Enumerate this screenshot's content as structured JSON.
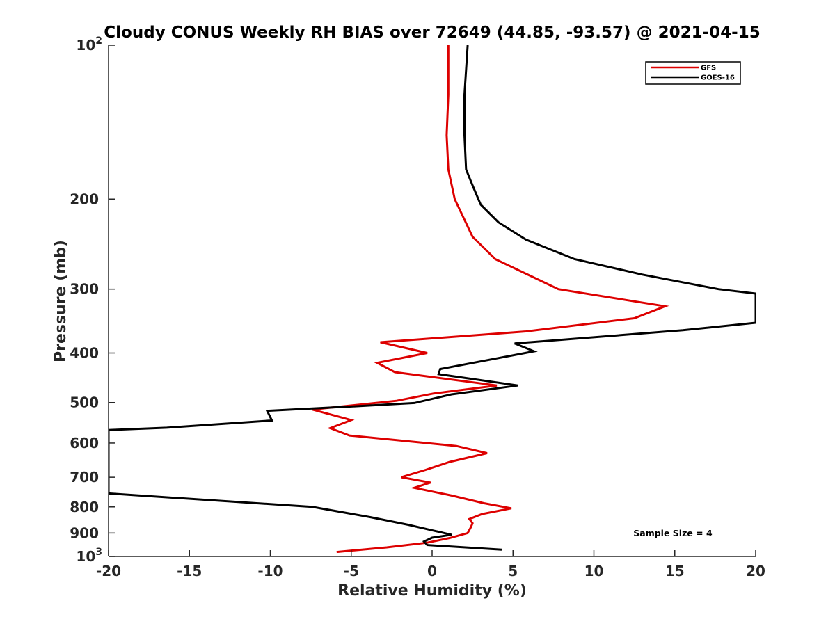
{
  "chart_data": {
    "type": "line",
    "title": "Cloudy CONUS Weekly RH BIAS over 72649 (44.85, -93.57) @ 2021-04-15",
    "xlabel": "Relative Humidity (%)",
    "ylabel": "Pressure (mb)",
    "xlim": [
      -20,
      20
    ],
    "ylim": [
      1000,
      100
    ],
    "yscale": "log",
    "xticks": [
      -20,
      -15,
      -10,
      -5,
      0,
      5,
      10,
      15,
      20
    ],
    "xtick_labels": [
      "-20",
      "-15",
      "-10",
      "-5",
      "0",
      "5",
      "10",
      "15",
      "20"
    ],
    "yticks": [
      {
        "value": 100,
        "base": "10",
        "exp": "2"
      },
      {
        "value": 200,
        "label": "200"
      },
      {
        "value": 300,
        "label": "300"
      },
      {
        "value": 400,
        "label": "400"
      },
      {
        "value": 500,
        "label": "500"
      },
      {
        "value": 600,
        "label": "600"
      },
      {
        "value": 700,
        "label": "700"
      },
      {
        "value": 800,
        "label": "800"
      },
      {
        "value": 900,
        "label": "900"
      },
      {
        "value": 1000,
        "base": "10",
        "exp": "3"
      }
    ],
    "grid": false,
    "legend_position": "top-right",
    "annotation": "Sample Size = 4",
    "series": [
      {
        "name": "GFS",
        "color": "#dd0000",
        "points": [
          [
            1.0,
            100
          ],
          [
            1.0,
            125
          ],
          [
            0.9,
            150
          ],
          [
            1.0,
            175
          ],
          [
            1.4,
            200
          ],
          [
            2.5,
            237
          ],
          [
            3.9,
            262
          ],
          [
            7.8,
            300
          ],
          [
            14.4,
            324
          ],
          [
            12.5,
            342
          ],
          [
            5.8,
            363
          ],
          [
            -3.2,
            381
          ],
          [
            -0.3,
            400
          ],
          [
            -3.4,
            418
          ],
          [
            -2.3,
            436
          ],
          [
            4.0,
            463
          ],
          [
            0.1,
            480
          ],
          [
            -2.2,
            496
          ],
          [
            -7.4,
            516
          ],
          [
            -5.0,
            541
          ],
          [
            -6.3,
            561
          ],
          [
            -5.1,
            580
          ],
          [
            1.5,
            608
          ],
          [
            3.4,
            628
          ],
          [
            1.1,
            653
          ],
          [
            -0.4,
            677
          ],
          [
            -1.9,
            700
          ],
          [
            -0.1,
            717
          ],
          [
            -1.1,
            734
          ],
          [
            1.2,
            760
          ],
          [
            3.2,
            787
          ],
          [
            4.9,
            805
          ],
          [
            3.1,
            826
          ],
          [
            2.3,
            845
          ],
          [
            2.5,
            861
          ],
          [
            2.4,
            876
          ],
          [
            2.2,
            900
          ],
          [
            1.1,
            920
          ],
          [
            -0.3,
            940
          ],
          [
            -2.8,
            960
          ],
          [
            -5.9,
            980
          ]
        ]
      },
      {
        "name": "GOES-16",
        "color": "#000000",
        "points": [
          [
            2.2,
            100
          ],
          [
            2.0,
            125
          ],
          [
            2.0,
            150
          ],
          [
            2.1,
            175
          ],
          [
            2.5,
            188
          ],
          [
            3.0,
            205
          ],
          [
            4.1,
            222
          ],
          [
            5.8,
            240
          ],
          [
            8.8,
            262
          ],
          [
            13.0,
            281
          ],
          [
            17.7,
            300
          ],
          [
            20.0,
            306
          ],
          [
            20.0,
            349
          ],
          [
            15.5,
            361
          ],
          [
            5.1,
            383
          ],
          [
            6.3,
            397
          ],
          [
            0.5,
            430
          ],
          [
            0.4,
            440
          ],
          [
            5.3,
            463
          ],
          [
            1.2,
            482
          ],
          [
            -1.1,
            501
          ],
          [
            -5.0,
            509
          ],
          [
            -10.2,
            519
          ],
          [
            -9.9,
            542
          ],
          [
            -16.4,
            560
          ],
          [
            -20.0,
            566
          ],
          [
            -20.0,
            753
          ],
          [
            -7.4,
            800
          ],
          [
            -3.8,
            838
          ],
          [
            -1.5,
            867
          ],
          [
            0.0,
            889
          ],
          [
            1.2,
            907
          ],
          [
            0.0,
            919
          ],
          [
            -0.5,
            935
          ],
          [
            -0.3,
            950
          ],
          [
            4.3,
            970
          ]
        ]
      }
    ]
  }
}
